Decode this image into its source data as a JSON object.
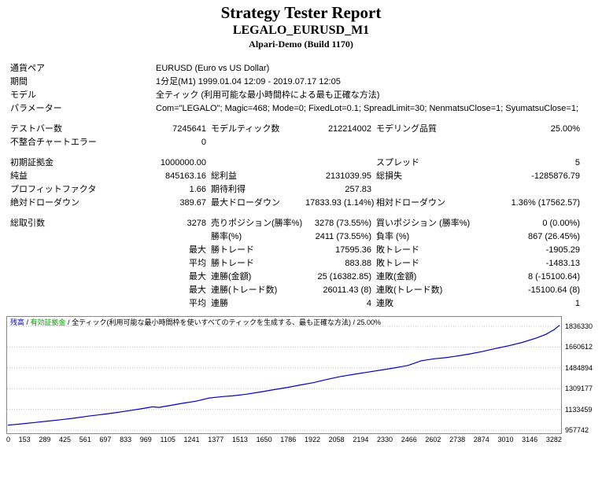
{
  "header": {
    "title": "Strategy Tester Report",
    "symbol_title": "LEGALO_EURUSD_M1",
    "server": "Alpari-Demo (Build 1170)"
  },
  "table": {
    "info_rows": [
      {
        "label": "通貨ペア",
        "value": "EURUSD (Euro vs US Dollar)"
      },
      {
        "label": "期間",
        "value": "1分足(M1) 1999.01.04 12:09 - 2019.07.17 12:05"
      },
      {
        "label": "モデル",
        "value": "全ティック (利用可能な最小時間枠による最も正確な方法)"
      },
      {
        "label": "パラメーター",
        "value": "Com=\"LEGALO\"; Magic=468; Mode=0; FixedLot=0.1; SpreadLimit=30; NenmatsuClose=1; SyumatsuClose=1;"
      }
    ],
    "stat_rows": [
      {
        "cells": [
          "テストバー数",
          "7245641",
          "モデルティック数",
          "212214002",
          "モデリング品質",
          "25.00%"
        ]
      },
      {
        "cells": [
          "不整合チャートエラー",
          "0",
          "",
          "",
          "",
          ""
        ]
      },
      {
        "spacer": true
      },
      {
        "cells": [
          "初期証拠金",
          "1000000.00",
          "",
          "",
          "スプレッド",
          "5"
        ]
      },
      {
        "cells": [
          "純益",
          "845163.16",
          "総利益",
          "2131039.95",
          "総損失",
          "-1285876.79"
        ]
      },
      {
        "cells": [
          "プロフィットファクタ",
          "1.66",
          "期待利得",
          "257.83",
          "",
          ""
        ]
      },
      {
        "cells": [
          "絶対ドローダウン",
          "389.67",
          "最大ドローダウン",
          "17833.93 (1.14%)",
          "相対ドローダウン",
          "1.36% (17562.57)"
        ]
      },
      {
        "spacer": true
      },
      {
        "cells": [
          "総取引数",
          "3278",
          "売りポジション(勝率%)",
          "3278 (73.55%)",
          "買いポジション (勝率%)",
          "0 (0.00%)"
        ]
      },
      {
        "cells": [
          "",
          "",
          "勝率(%)",
          "2411 (73.55%)",
          "負率 (%)",
          "867 (26.45%)"
        ]
      },
      {
        "cells": [
          "",
          "最大",
          "勝トレード",
          "17595.36",
          "敗トレード",
          "-1905.29"
        ]
      },
      {
        "cells": [
          "",
          "平均",
          "勝トレード",
          "883.88",
          "敗トレード",
          "-1483.13"
        ]
      },
      {
        "cells": [
          "",
          "最大",
          "連勝(金額)",
          "25 (16382.85)",
          "連敗(金額)",
          "8 (-15100.64)"
        ]
      },
      {
        "cells": [
          "",
          "最大",
          "連勝(トレード数)",
          "26011.43 (8)",
          "連敗(トレード数)",
          "-15100.64 (8)"
        ]
      },
      {
        "cells": [
          "",
          "平均",
          "連勝",
          "4",
          "連敗",
          "1"
        ]
      }
    ]
  },
  "chart_data": {
    "type": "line",
    "title": "",
    "legend_parts": [
      {
        "name": "legend-balance",
        "text": "残高",
        "color": "#0000C8"
      },
      {
        "name": "legend-separator",
        "text": " / ",
        "color": "#000000"
      },
      {
        "name": "legend-equity",
        "text": "有効証拠金",
        "color": "#00A000"
      },
      {
        "name": "legend-separator",
        "text": " / ",
        "color": "#000000"
      },
      {
        "name": "legend-model",
        "text": "全ティック(利用可能な最小時間枠を使いすべてのティックを生成する、最も正確な方法) / 25.00%",
        "color": "#000000"
      }
    ],
    "line_color": "#0000C8",
    "grid": "horizontal-dotted",
    "grid_color": "#C0C0C0",
    "xlabel": "",
    "ylabel": "",
    "x_range": [
      0,
      3282
    ],
    "y_ticks": [
      1836330,
      1660612,
      1484894,
      1309177,
      1133459,
      957742
    ],
    "x_ticks": [
      0,
      153,
      289,
      425,
      561,
      697,
      833,
      969,
      1105,
      1241,
      1377,
      1513,
      1650,
      1786,
      1922,
      2058,
      2194,
      2330,
      2466,
      2602,
      2738,
      2874,
      3010,
      3146,
      3282
    ],
    "series": [
      {
        "name": "残高",
        "color": "#0000C8",
        "points": [
          [
            0,
            1000000
          ],
          [
            80,
            1010000
          ],
          [
            160,
            1022000
          ],
          [
            240,
            1034000
          ],
          [
            320,
            1046000
          ],
          [
            400,
            1060000
          ],
          [
            480,
            1076000
          ],
          [
            560,
            1090000
          ],
          [
            640,
            1105000
          ],
          [
            720,
            1122000
          ],
          [
            800,
            1140000
          ],
          [
            860,
            1155000
          ],
          [
            900,
            1150000
          ],
          [
            960,
            1165000
          ],
          [
            1040,
            1185000
          ],
          [
            1120,
            1203000
          ],
          [
            1200,
            1230000
          ],
          [
            1280,
            1242000
          ],
          [
            1340,
            1248000
          ],
          [
            1420,
            1262000
          ],
          [
            1500,
            1280000
          ],
          [
            1580,
            1300000
          ],
          [
            1660,
            1318000
          ],
          [
            1740,
            1340000
          ],
          [
            1820,
            1360000
          ],
          [
            1900,
            1388000
          ],
          [
            1980,
            1412000
          ],
          [
            2060,
            1430000
          ],
          [
            2140,
            1448000
          ],
          [
            2220,
            1466000
          ],
          [
            2300,
            1484000
          ],
          [
            2380,
            1505000
          ],
          [
            2460,
            1545000
          ],
          [
            2540,
            1562000
          ],
          [
            2600,
            1570000
          ],
          [
            2660,
            1582000
          ],
          [
            2740,
            1600000
          ],
          [
            2820,
            1622000
          ],
          [
            2900,
            1648000
          ],
          [
            2980,
            1672000
          ],
          [
            3060,
            1700000
          ],
          [
            3140,
            1735000
          ],
          [
            3200,
            1768000
          ],
          [
            3250,
            1808000
          ],
          [
            3282,
            1845163
          ]
        ]
      }
    ]
  }
}
